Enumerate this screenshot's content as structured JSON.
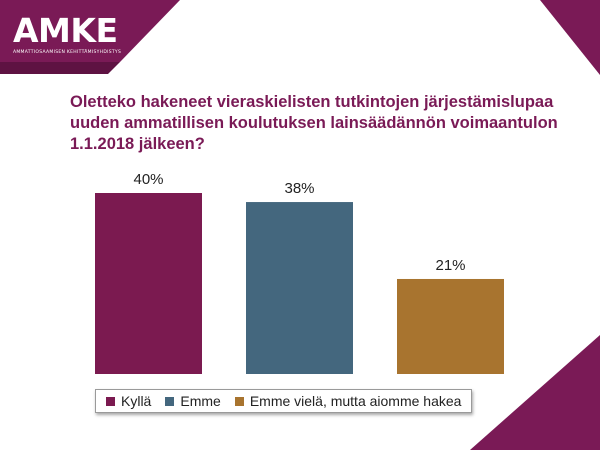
{
  "logo": {
    "text": "AMKE",
    "tagline": "AMMATTIOSAAMISEN KEHITTÄMISYHDISTYS"
  },
  "colors": {
    "brand": "#7a1a56",
    "background": "#ffffff"
  },
  "chart_data": {
    "type": "bar",
    "title": "Oletteko hakeneet vieraskielisten tutkintojen järjestämislupaa uuden ammatillisen koulutuksen lainsäädännön voimaantulon 1.1.2018 jälkeen?",
    "xlabel": "",
    "ylabel": "",
    "ylim": [
      0,
      40
    ],
    "grid": false,
    "legend_position": "bottom",
    "categories": [
      "Kyllä",
      "Emme",
      "Emme vielä, mutta aiomme hakea"
    ],
    "values": [
      40,
      38,
      21
    ],
    "value_labels": [
      "40%",
      "38%",
      "21%"
    ],
    "colors": [
      "#7b1a50",
      "#44677e",
      "#a8742f"
    ]
  }
}
